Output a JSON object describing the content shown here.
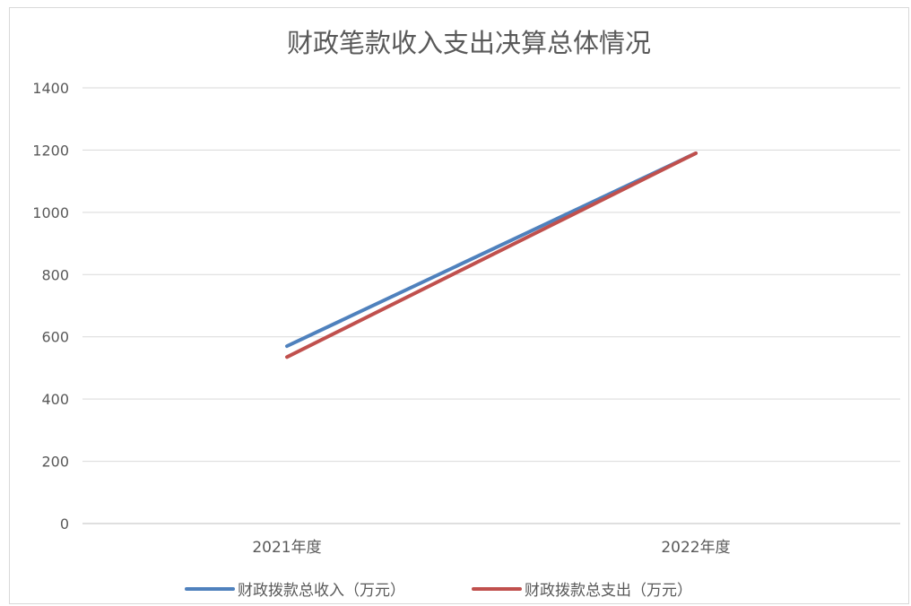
{
  "chart_data": {
    "type": "line",
    "title": "财政笔款收入支出决算总体情况",
    "xlabel": "",
    "ylabel": "",
    "categories": [
      "2021年度",
      "2022年度"
    ],
    "ylim": [
      0,
      1400
    ],
    "yticks": [
      0,
      200,
      400,
      600,
      800,
      1000,
      1200,
      1400
    ],
    "grid": true,
    "legend_position": "bottom",
    "series": [
      {
        "name": "财政拨款总收入（万元）",
        "values": [
          570,
          1190
        ],
        "color": "#4f81bd"
      },
      {
        "name": "财政拨款总支出（万元）",
        "values": [
          535,
          1190
        ],
        "color": "#c0504d"
      }
    ]
  }
}
